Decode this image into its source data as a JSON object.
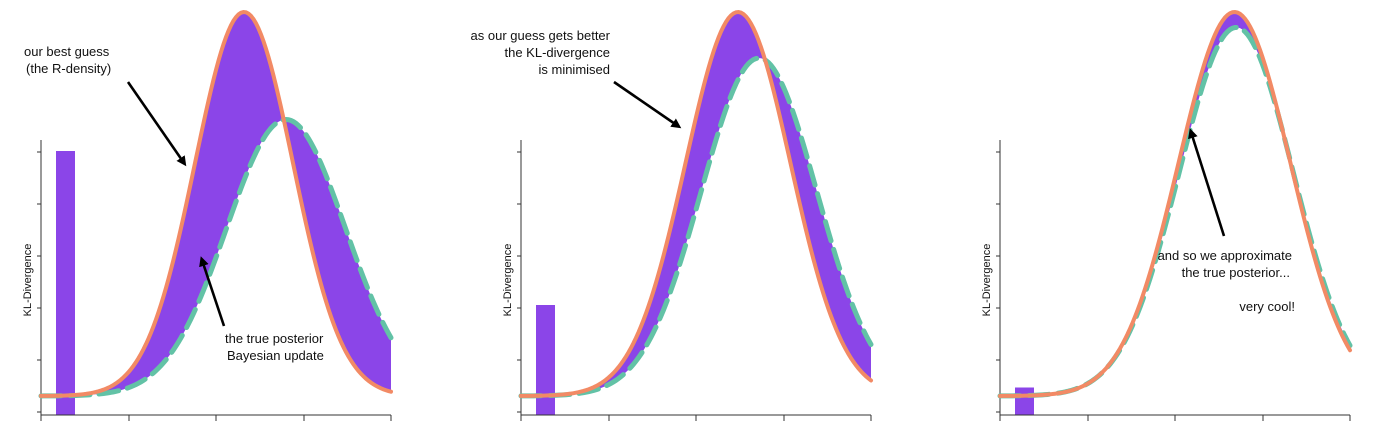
{
  "colors": {
    "divergence_fill": "#8b45e8",
    "r_density": "#f28a65",
    "true_posterior": "#62c2a6",
    "axis": "#333333",
    "arrow": "#000000"
  },
  "panels": [
    {
      "ylabel": "KL-Divergence",
      "kl_bar_value": 0.96,
      "r_density": {
        "mu": 0.58,
        "sigma": 0.14,
        "peak": 1.0
      },
      "true_posterior": {
        "mu": 0.7,
        "sigma": 0.17,
        "peak": 0.72
      },
      "annotations": {
        "top": [
          "our best guess",
          "(the R-density)"
        ],
        "bottom": [
          "the true posterior",
          "Bayesian update"
        ]
      }
    },
    {
      "ylabel": "KL-Divergence",
      "kl_bar_value": 0.4,
      "r_density": {
        "mu": 0.62,
        "sigma": 0.15,
        "peak": 1.0
      },
      "true_posterior": {
        "mu": 0.68,
        "sigma": 0.165,
        "peak": 0.88
      },
      "annotations": {
        "top": [
          "as our guess gets better",
          "the KL-divergence",
          "is minimised"
        ]
      }
    },
    {
      "ylabel": "KL-Divergence",
      "kl_bar_value": 0.1,
      "r_density": {
        "mu": 0.67,
        "sigma": 0.16,
        "peak": 1.0
      },
      "true_posterior": {
        "mu": 0.675,
        "sigma": 0.163,
        "peak": 0.96
      },
      "annotations": {
        "middle": [
          "and so we approximate",
          "the true posterior...",
          "",
          "very cool!"
        ]
      }
    }
  ]
}
